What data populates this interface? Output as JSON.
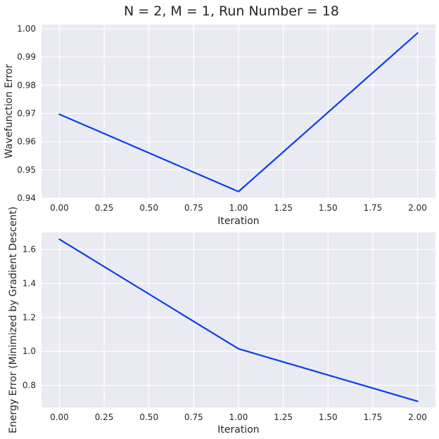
{
  "figure": {
    "title": "N = 2, M = 1, Run Number = 18"
  },
  "colors": {
    "figure_background": "#ffffff",
    "plot_background": "#eaeaf2",
    "grid": "#ffffff",
    "text": "#262626"
  },
  "chart_data": [
    {
      "type": "line",
      "title": "",
      "xlabel": "Iteration",
      "ylabel": "Wavefunction Error",
      "xlim": [
        -0.1,
        2.1
      ],
      "ylim": [
        0.94,
        1.0015
      ],
      "xticks": [
        "0.00",
        "0.25",
        "0.50",
        "0.75",
        "1.00",
        "1.25",
        "1.50",
        "1.75",
        "2.00"
      ],
      "yticks": [
        "0.94",
        "0.95",
        "0.96",
        "0.97",
        "0.98",
        "0.99",
        "1.00"
      ],
      "grid": true,
      "series": [
        {
          "color": "#0b3fe8",
          "x": [
            0,
            1,
            2
          ],
          "y": [
            0.9697,
            0.9423,
            0.9985
          ]
        }
      ]
    },
    {
      "type": "line",
      "title": "",
      "xlabel": "Iteration",
      "ylabel": "Energy Error (Minimized by Gradient Descent)",
      "xlim": [
        -0.1,
        2.1
      ],
      "ylim": [
        0.67,
        1.7
      ],
      "xticks": [
        "0.00",
        "0.25",
        "0.50",
        "0.75",
        "1.00",
        "1.25",
        "1.50",
        "1.75",
        "2.00"
      ],
      "yticks": [
        "0.8",
        "1.0",
        "1.2",
        "1.4",
        "1.6"
      ],
      "grid": true,
      "series": [
        {
          "color": "#0b3fe8",
          "x": [
            0,
            1,
            2
          ],
          "y": [
            1.66,
            1.015,
            0.706
          ]
        }
      ]
    }
  ]
}
